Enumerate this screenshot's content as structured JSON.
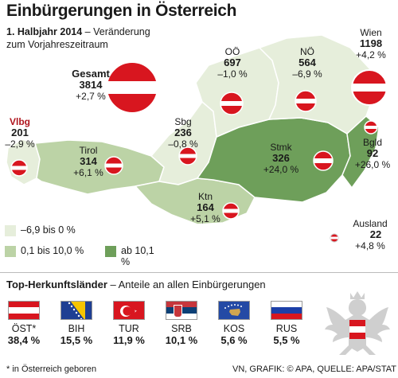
{
  "title": "Einbürgerungen in Österreich",
  "subtitle_bold": "1. Halbjahr 2014",
  "subtitle_rest": " – Veränderung",
  "subtitle_line2": "zum Vorjahreszeitraum",
  "colors": {
    "cat_low": "#e6eedb",
    "cat_mid": "#bcd3a6",
    "cat_high": "#6e9f5a",
    "region_default": "#c7d9b5",
    "flag_red": "#d8161f",
    "accent_red": "#b0151e"
  },
  "chart_data": {
    "type": "map",
    "regions": [
      {
        "id": "vlbg",
        "name": "Vlbg",
        "value": 201,
        "change": "–2,9 %",
        "category": "low"
      },
      {
        "id": "tirol",
        "name": "Tirol",
        "value": 314,
        "change": "+6,1 %",
        "category": "mid"
      },
      {
        "id": "sbg",
        "name": "Sbg",
        "value": 236,
        "change": "–0,8 %",
        "category": "low"
      },
      {
        "id": "ktn",
        "name": "Ktn",
        "value": 164,
        "change": "+5,1 %",
        "category": "mid"
      },
      {
        "id": "stmk",
        "name": "Stmk",
        "value": 326,
        "change": "+24,0 %",
        "category": "high"
      },
      {
        "id": "oo",
        "name": "OÖ",
        "value": 697,
        "change": "–1,0 %",
        "category": "low"
      },
      {
        "id": "no",
        "name": "NÖ",
        "value": 564,
        "change": "–6,9 %",
        "category": "low"
      },
      {
        "id": "wien",
        "name": "Wien",
        "value": 1198,
        "change": "+4,2 %",
        "category": "mid"
      },
      {
        "id": "bgld",
        "name": "Bgld",
        "value": 92,
        "change": "+26,0 %",
        "category": "high"
      }
    ],
    "total": {
      "name": "Gesamt",
      "value": 3814,
      "change": "+2,7 %"
    },
    "abroad": {
      "name": "Ausland",
      "value": 22,
      "change": "+4,8 %"
    },
    "legend": [
      {
        "label": "–6,9 bis 0 %",
        "category": "low"
      },
      {
        "label": "0,1 bis 10,0 %",
        "category": "mid"
      },
      {
        "label": "ab 10,1 %",
        "category": "high"
      }
    ]
  },
  "bottom": {
    "title_bold": "Top-Herkunftsländer",
    "title_rest": " – Anteile an allen Einbürgerungen",
    "countries": [
      {
        "code": "ÖST*",
        "pct": "38,4 %",
        "flag": "austria"
      },
      {
        "code": "BIH",
        "pct": "15,5 %",
        "flag": "bosnia"
      },
      {
        "code": "TUR",
        "pct": "11,9 %",
        "flag": "turkey"
      },
      {
        "code": "SRB",
        "pct": "10,1 %",
        "flag": "serbia"
      },
      {
        "code": "KOS",
        "pct": "5,6 %",
        "flag": "kosovo"
      },
      {
        "code": "RUS",
        "pct": "5,5 %",
        "flag": "russia"
      }
    ],
    "footnote": "* in Österreich geboren",
    "credit": "VN, GRAFIK: © APA, QUELLE: APA/STAT"
  }
}
